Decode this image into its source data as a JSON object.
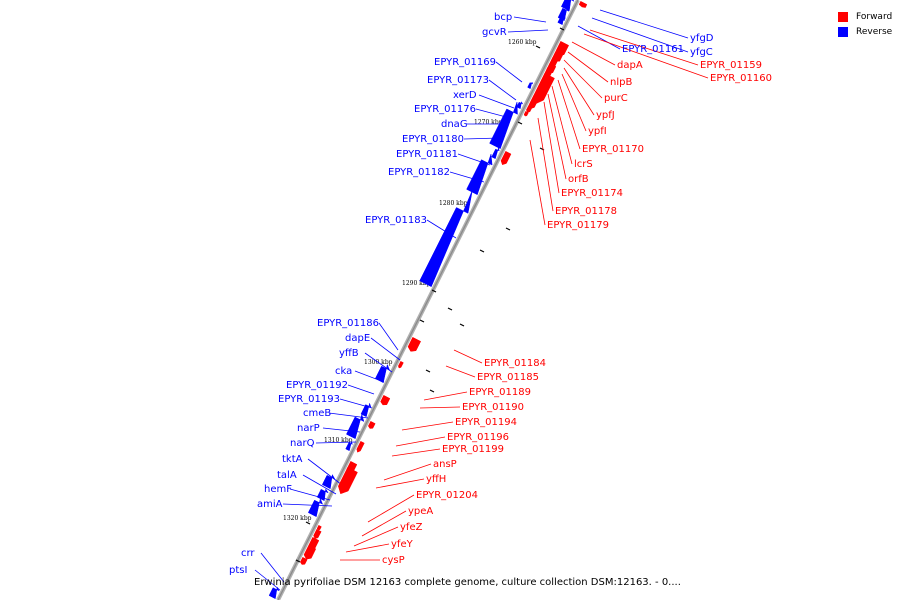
{
  "caption": "Erwinia pyrifoliae DSM 12163 complete genome, culture collection DSM:12163. - 0....",
  "legend": {
    "forward": {
      "label": "Forward",
      "color": "#ff0000"
    },
    "reverse": {
      "label": "Reverse",
      "color": "#0000ff"
    }
  },
  "scale_labels": [
    "1260 kbp",
    "1270 kbp",
    "1280 kbp",
    "1290 kbp",
    "1300 kbp",
    "1310 kbp",
    "1320 kbp"
  ],
  "reverse_genes": [
    "bcp",
    "gcvR",
    "EPYR_01169",
    "EPYR_01173",
    "xerD",
    "EPYR_01176",
    "dnaG",
    "EPYR_01180",
    "EPYR_01181",
    "EPYR_01182",
    "EPYR_01183",
    "EPYR_01186",
    "dapE",
    "yffB",
    "cka",
    "EPYR_01192",
    "EPYR_01193",
    "cmeB",
    "narP",
    "narQ",
    "tktA",
    "talA",
    "hemF",
    "amiA",
    "crr",
    "ptsI",
    "yfgD",
    "yfgC",
    "EPYR_01161"
  ],
  "forward_genes": [
    "EPYR_01159",
    "EPYR_01160",
    "dapA",
    "nlpB",
    "purC",
    "ypfJ",
    "ypfI",
    "EPYR_01170",
    "lcrS",
    "orfB",
    "EPYR_01174",
    "EPYR_01178",
    "EPYR_01179",
    "EPYR_01184",
    "EPYR_01185",
    "EPYR_01189",
    "EPYR_01190",
    "EPYR_01194",
    "EPYR_01196",
    "EPYR_01199",
    "ansP",
    "yffH",
    "EPYR_01204",
    "ypeA",
    "yfeZ",
    "yfeY",
    "cysP"
  ]
}
